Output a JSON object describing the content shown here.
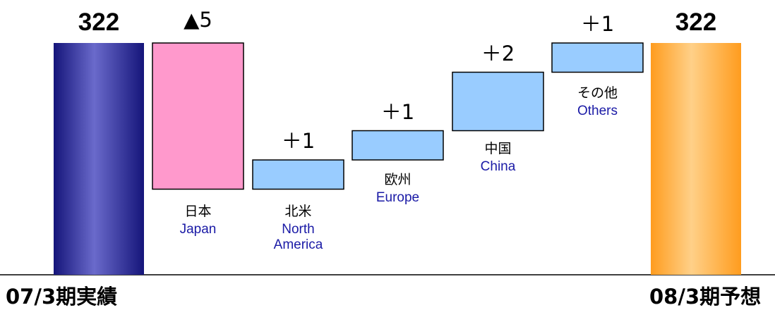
{
  "chart_data": {
    "type": "bar",
    "subtype": "waterfall",
    "start": {
      "label": "07/3期実績",
      "value": 322,
      "value_label": "322"
    },
    "end": {
      "label": "08/3期予想",
      "value": 322,
      "value_label": "322"
    },
    "steps": [
      {
        "label_ja": "日本",
        "label_en": "Japan",
        "change": -5,
        "change_label": "▲5"
      },
      {
        "label_ja": "北米",
        "label_en": "North America",
        "change": 1,
        "change_label": "＋1"
      },
      {
        "label_ja": "欧州",
        "label_en": "Europe",
        "change": 1,
        "change_label": "＋1"
      },
      {
        "label_ja": "中国",
        "label_en": "China",
        "change": 2,
        "change_label": "＋2"
      },
      {
        "label_ja": "その他",
        "label_en": "Others",
        "change": 1,
        "change_label": "＋1"
      }
    ],
    "colors": {
      "start_bar": "#1c1c8a",
      "end_bar": "#ff9a1a",
      "decrease": "#ff99cc",
      "increase": "#99ccff",
      "category_en_text": "#1a1aa6"
    },
    "grid": false,
    "legend": "none"
  }
}
